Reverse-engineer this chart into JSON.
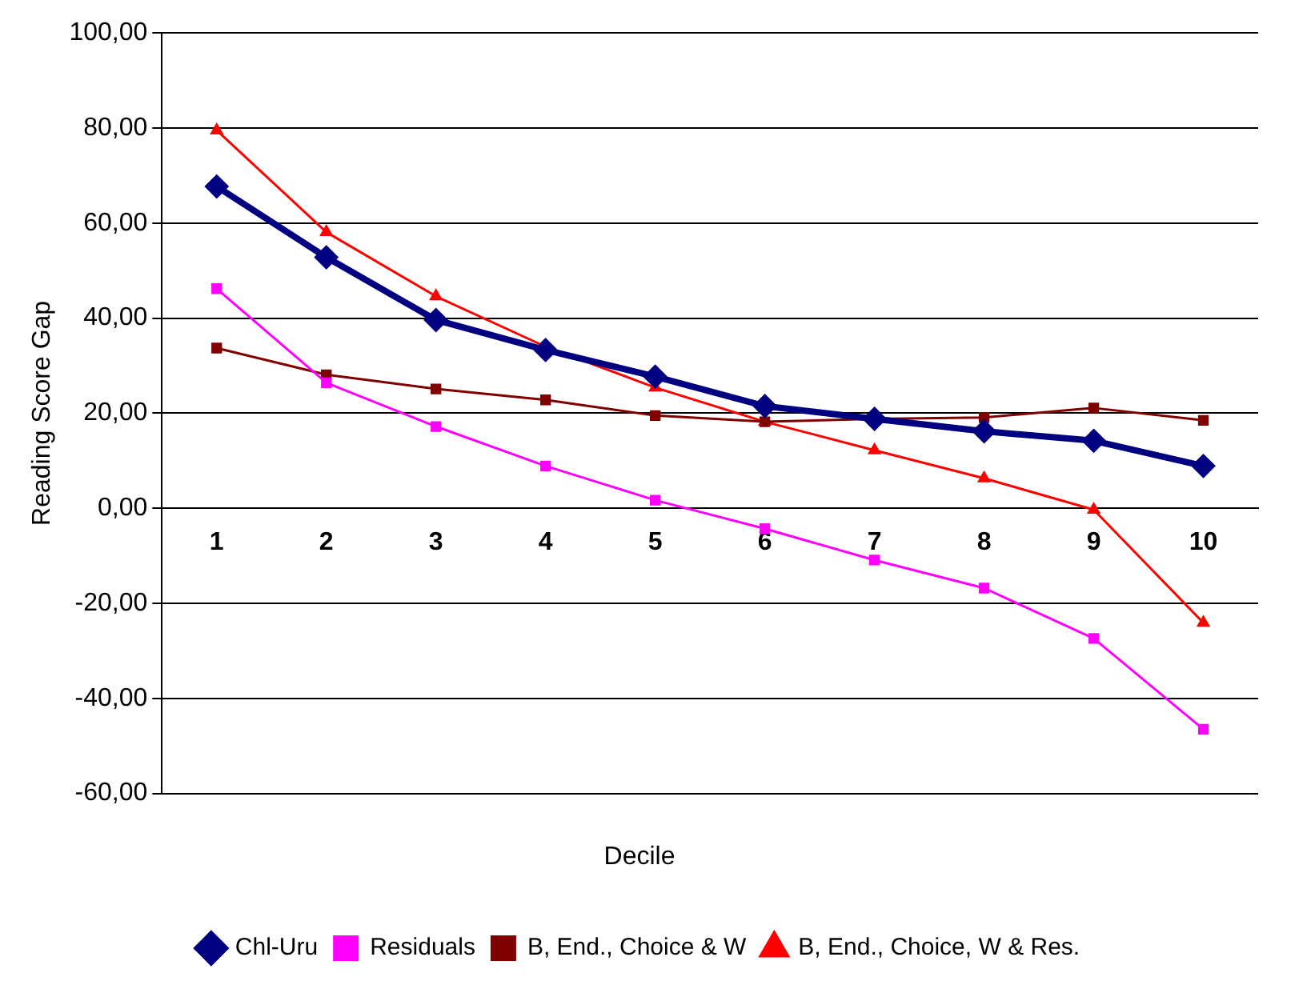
{
  "chart_data": {
    "type": "line",
    "xlabel": "Decile",
    "ylabel": "Reading Score Gap",
    "categories": [
      "1",
      "2",
      "3",
      "4",
      "5",
      "6",
      "7",
      "8",
      "9",
      "10"
    ],
    "series": [
      {
        "name": "Chl-Uru",
        "color": "#000080",
        "marker": "diamond",
        "values": [
          67.7,
          52.8,
          39.6,
          33.3,
          27.7,
          21.5,
          18.8,
          16.2,
          14.2,
          8.9
        ]
      },
      {
        "name": "Residuals",
        "color": "#ff00ff",
        "marker": "square",
        "values": [
          46.2,
          26.4,
          17.2,
          8.9,
          1.7,
          -4.3,
          -10.9,
          -16.8,
          -27.4,
          -46.5
        ]
      },
      {
        "name": "B, End., Choice & W",
        "color": "#800000",
        "marker": "square",
        "values": [
          33.7,
          28.1,
          25.1,
          22.8,
          19.5,
          18.2,
          18.8,
          19.1,
          21.1,
          18.5
        ]
      },
      {
        "name": "B, End., Choice, W & Res.",
        "color": "#ff0000",
        "marker": "triangle",
        "values": [
          79.5,
          58.1,
          44.6,
          34.0,
          25.4,
          18.2,
          12.2,
          6.3,
          -0.3,
          -24.1
        ]
      }
    ],
    "ylim": [
      -60,
      100
    ],
    "yticks": [
      {
        "value": -60,
        "label": "-60,00"
      },
      {
        "value": -40,
        "label": "-40,00"
      },
      {
        "value": -20,
        "label": "-20,00"
      },
      {
        "value": 0,
        "label": "0,00"
      },
      {
        "value": 20,
        "label": "20,00"
      },
      {
        "value": 40,
        "label": "40,00"
      },
      {
        "value": 60,
        "label": "60,00"
      },
      {
        "value": 80,
        "label": "80,00"
      },
      {
        "value": 100,
        "label": "100,00"
      }
    ],
    "grid": "y",
    "legend": "bottom"
  }
}
